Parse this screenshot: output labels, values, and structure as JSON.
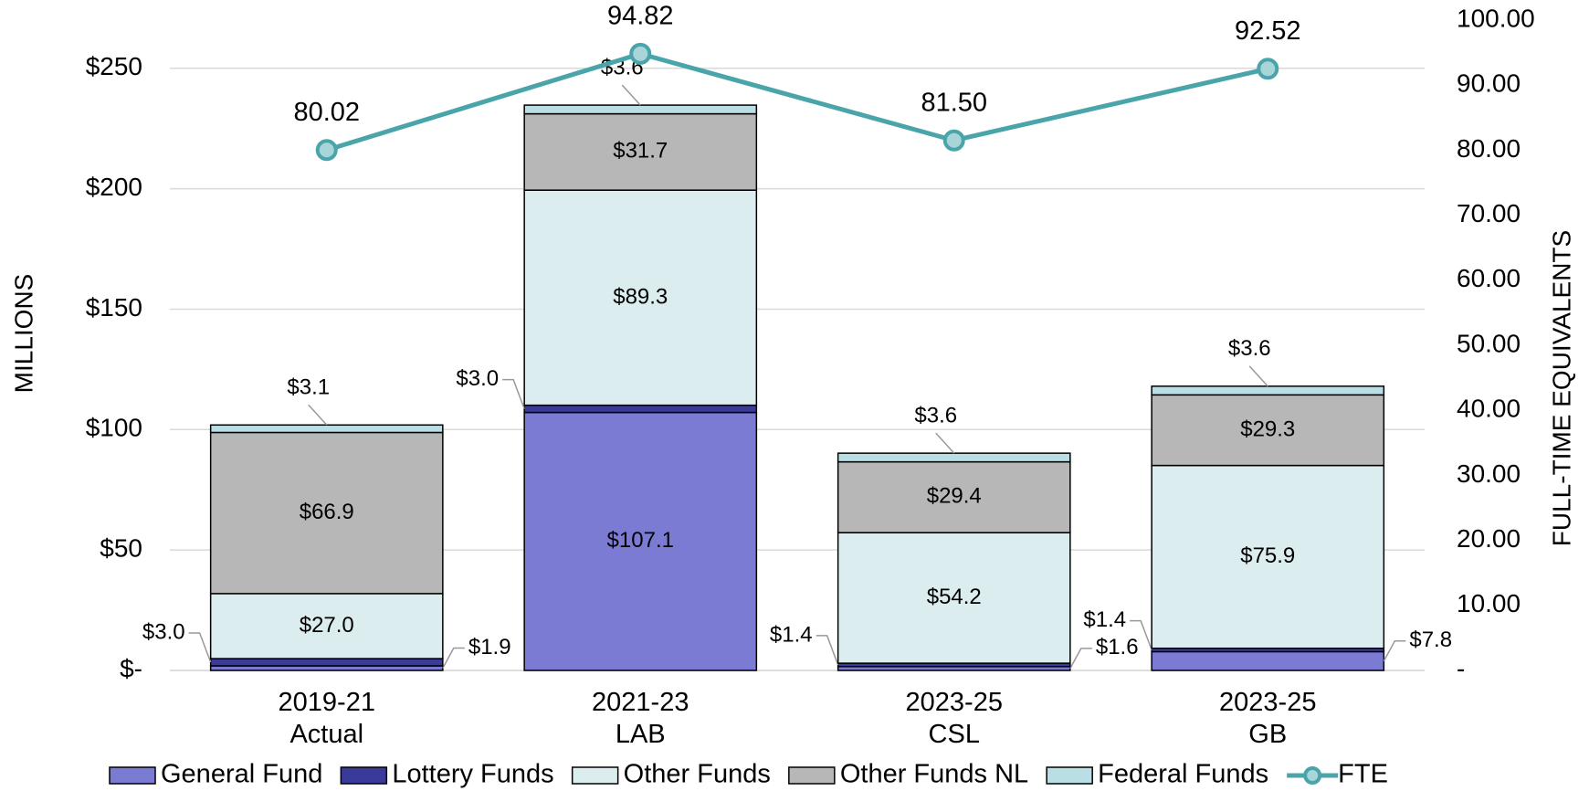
{
  "chart_data": {
    "type": "bar",
    "stacked": true,
    "y_label": "MILLIONS",
    "y2_label": "FULL-TIME EQUIVALENTS",
    "categories": [
      "2019-21\nActual",
      "2021-23\nLAB",
      "2023-25\nCSL",
      "2023-25\nGB"
    ],
    "series": [
      {
        "name": "General Fund",
        "color": "#7b7bd4",
        "values": [
          1.9,
          107.1,
          1.6,
          7.8
        ],
        "value_labels": [
          "$1.9",
          "$107.1",
          "$1.6",
          "$7.8"
        ]
      },
      {
        "name": "Lottery Funds",
        "color": "#3a3a9a",
        "values": [
          3.0,
          3.0,
          1.4,
          1.4
        ],
        "value_labels": [
          "$3.0",
          "$3.0",
          "$1.4",
          "$1.4"
        ]
      },
      {
        "name": "Other Funds",
        "color": "#dcedf0",
        "values": [
          27.0,
          89.3,
          54.2,
          75.9
        ],
        "value_labels": [
          "$27.0",
          "$89.3",
          "$54.2",
          "$75.9"
        ]
      },
      {
        "name": "Other Funds NL",
        "color": "#b7b7b7",
        "values": [
          66.9,
          31.7,
          29.4,
          29.3
        ],
        "value_labels": [
          "$66.9",
          "$31.7",
          "$29.4",
          "$29.3"
        ]
      },
      {
        "name": "Federal Funds",
        "color": "#b9dfe4",
        "values": [
          3.1,
          3.6,
          3.6,
          3.6
        ],
        "value_labels": [
          "$3.1",
          "$3.6",
          "$3.6",
          "$3.6"
        ]
      },
      {
        "name": "FTE",
        "type": "line",
        "axis": "y2",
        "color": "#4aa5ab",
        "marker_fill": "#a8d5d8",
        "values": [
          80.02,
          94.82,
          81.5,
          92.52
        ],
        "value_labels": [
          "80.02",
          "94.82",
          "81.50",
          "92.52"
        ]
      }
    ],
    "ylim": [
      0,
      270
    ],
    "yticks": [
      {
        "value": 0,
        "label": "$-"
      },
      {
        "value": 50,
        "label": "$50"
      },
      {
        "value": 100,
        "label": "$100"
      },
      {
        "value": 150,
        "label": "$150"
      },
      {
        "value": 200,
        "label": "$200"
      },
      {
        "value": 250,
        "label": "$250"
      }
    ],
    "y2lim": [
      0,
      100
    ],
    "y2ticks": [
      {
        "value": 0,
        "label": "-"
      },
      {
        "value": 10,
        "label": "10.00"
      },
      {
        "value": 20,
        "label": "20.00"
      },
      {
        "value": 30,
        "label": "30.00"
      },
      {
        "value": 40,
        "label": "40.00"
      },
      {
        "value": 50,
        "label": "50.00"
      },
      {
        "value": 60,
        "label": "60.00"
      },
      {
        "value": 70,
        "label": "70.00"
      },
      {
        "value": 80,
        "label": "80.00"
      },
      {
        "value": 90,
        "label": "90.00"
      },
      {
        "value": 100,
        "label": "100.00"
      }
    ],
    "grid": true,
    "legend": "bottom"
  }
}
